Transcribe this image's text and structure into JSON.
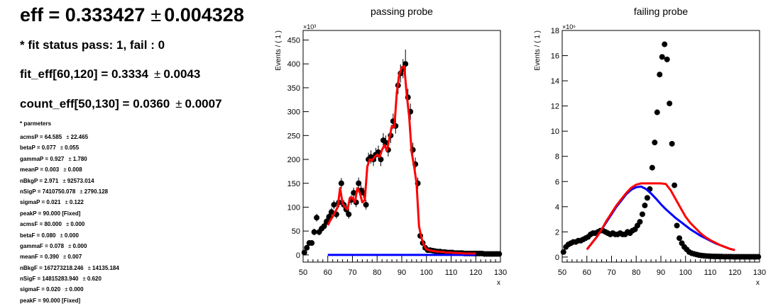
{
  "header": {
    "eff_label": "eff = 0.333427",
    "eff_err": "0.004328",
    "fit_status": "* fit status pass: 1, fail : 0",
    "fit_eff_label": "fit_eff[60,120] = 0.3334",
    "fit_eff_err": "0.0043",
    "count_eff_label": "count_eff[50,130] = 0.0360",
    "count_eff_err": "0.0007",
    "pm_symbol": "±"
  },
  "parameters": {
    "title": "* parmeters",
    "rows": [
      {
        "name": "acmsP = 64.585",
        "err": "22.465"
      },
      {
        "name": "betaP = 0.077",
        "err": "0.055"
      },
      {
        "name": "gammaP = 0.927",
        "err": "1.780"
      },
      {
        "name": "meanP = 0.003",
        "err": "0.008"
      },
      {
        "name": "nBkgP = 2.971",
        "err": "92573.014"
      },
      {
        "name": "nSigP = 7410750.078",
        "err": "2790.128"
      },
      {
        "name": "sigmaP = 0.021",
        "err": "0.122"
      },
      {
        "name": "peakP = 90.000 [Fixed]",
        "err": ""
      },
      {
        "name": "acmsF = 80.000",
        "err": "0.000"
      },
      {
        "name": "betaF = 0.080",
        "err": "0.000"
      },
      {
        "name": "gammaF = 0.078",
        "err": "0.000"
      },
      {
        "name": "meanF = 0.390",
        "err": "0.007"
      },
      {
        "name": "nBkgF = 167273218.246",
        "err": "14135.184"
      },
      {
        "name": "nSigF = 14815283.940",
        "err": "0.620"
      },
      {
        "name": "sigmaF = 0.020",
        "err": "0.000"
      },
      {
        "name": "peakF = 90.000 [Fixed]",
        "err": ""
      }
    ]
  },
  "chart_data": [
    {
      "type": "scatter",
      "title": "passing probe",
      "xlabel": "x",
      "ylabel": "Events / ( 1 )",
      "y_exponent": "×10³",
      "xlim": [
        50,
        130
      ],
      "ylim": [
        -15,
        470
      ],
      "xticks": [
        50,
        60,
        70,
        80,
        90,
        100,
        110,
        120,
        130
      ],
      "yticks": [
        0,
        50,
        100,
        150,
        200,
        250,
        300,
        350,
        400,
        450
      ],
      "colors": {
        "points": "#000000",
        "fit_total": "#ff0000",
        "fit_background": "#0000ff"
      },
      "points": {
        "x": [
          50.5,
          51.5,
          52.5,
          53.5,
          54.5,
          55.5,
          56.5,
          57.5,
          58.5,
          59.5,
          60.5,
          61.5,
          62.5,
          63.5,
          64.5,
          65.5,
          66.5,
          67.5,
          68.5,
          69.5,
          70.5,
          71.5,
          72.5,
          73.5,
          74.5,
          75.5,
          76.5,
          77.5,
          78.5,
          79.5,
          80.5,
          81.5,
          82.5,
          83.5,
          84.5,
          85.5,
          86.5,
          87.5,
          88.5,
          89.5,
          90.5,
          91.5,
          92.5,
          93.5,
          94.5,
          95.5,
          96.5,
          97.5,
          98.5,
          99.5,
          100.5,
          101.5,
          102.5,
          103.5,
          104.5,
          105.5,
          106.5,
          107.5,
          108.5,
          109.5,
          110.5,
          111.5,
          112.5,
          113.5,
          114.5,
          115.5,
          116.5,
          117.5,
          118.5,
          119.5,
          120.5,
          121.5,
          122.5,
          123.5,
          124.5,
          125.5,
          126.5,
          127.5,
          128.5,
          129.5
        ],
        "y": [
          5,
          15,
          25,
          25,
          48,
          78,
          48,
          55,
          60,
          70,
          80,
          90,
          105,
          85,
          110,
          150,
          105,
          95,
          85,
          115,
          130,
          110,
          150,
          135,
          130,
          105,
          200,
          205,
          200,
          210,
          215,
          200,
          240,
          235,
          220,
          250,
          280,
          270,
          355,
          380,
          390,
          400,
          330,
          300,
          220,
          190,
          150,
          40,
          25,
          15,
          10,
          10,
          9,
          8,
          7,
          7,
          6,
          6,
          5,
          5,
          5,
          4,
          4,
          4,
          4,
          3,
          3,
          3,
          3,
          3,
          3,
          3,
          3,
          2,
          2,
          2,
          2,
          2,
          2,
          2
        ],
        "err": [
          5,
          5,
          6,
          6,
          7,
          8,
          7,
          7,
          7,
          8,
          8,
          9,
          9,
          9,
          10,
          11,
          10,
          10,
          9,
          10,
          11,
          10,
          12,
          11,
          11,
          10,
          14,
          14,
          14,
          14,
          14,
          14,
          15,
          15,
          14,
          16,
          16,
          16,
          18,
          19,
          20,
          30,
          18,
          17,
          15,
          14,
          12,
          6,
          5,
          4,
          3,
          3,
          3,
          3,
          3,
          3,
          2,
          2,
          2,
          2,
          2,
          2,
          2,
          2,
          2,
          2,
          2,
          2,
          2,
          2,
          2,
          2,
          2,
          2,
          2,
          2,
          2,
          2,
          2,
          2
        ]
      },
      "fit_total": {
        "x": [
          60,
          61,
          62,
          63,
          64,
          65,
          66,
          67,
          68,
          69,
          70,
          71,
          72,
          73,
          74,
          75,
          76,
          77,
          78,
          79,
          80,
          81,
          82,
          83,
          84,
          85,
          86,
          87,
          88,
          89,
          90,
          91,
          92,
          93,
          94,
          95,
          96,
          97,
          98,
          99,
          100,
          101,
          102,
          103,
          104,
          105,
          106,
          107,
          108,
          109,
          110,
          111,
          112,
          113,
          114,
          115,
          116,
          117,
          118,
          119,
          120
        ],
        "y": [
          62,
          72,
          80,
          90,
          100,
          140,
          108,
          100,
          95,
          120,
          120,
          110,
          140,
          130,
          110,
          115,
          185,
          200,
          198,
          205,
          210,
          205,
          220,
          230,
          218,
          245,
          270,
          268,
          340,
          378,
          392,
          395,
          335,
          290,
          215,
          185,
          150,
          60,
          35,
          20,
          12,
          10,
          9,
          8,
          7,
          7,
          6,
          6,
          5,
          5,
          5,
          4,
          4,
          4,
          4,
          3,
          3,
          3,
          3,
          3,
          3
        ]
      },
      "fit_background": {
        "x": [
          60,
          120
        ],
        "y": [
          0,
          0
        ]
      }
    },
    {
      "type": "scatter",
      "title": "failing probe",
      "xlabel": "x",
      "ylabel": "Events / ( 1 )",
      "y_exponent": "×10⁶",
      "xlim": [
        50,
        130
      ],
      "ylim": [
        -0.4,
        18
      ],
      "xticks": [
        50,
        60,
        70,
        80,
        90,
        100,
        110,
        120,
        130
      ],
      "yticks": [
        0,
        2,
        4,
        6,
        8,
        10,
        12,
        14,
        16,
        18
      ],
      "colors": {
        "points": "#000000",
        "fit_total": "#ff0000",
        "fit_background": "#0000ff"
      },
      "points": {
        "x": [
          50.5,
          51.5,
          52.5,
          53.5,
          54.5,
          55.5,
          56.5,
          57.5,
          58.5,
          59.5,
          60.5,
          61.5,
          62.5,
          63.5,
          64.5,
          65.5,
          66.5,
          67.5,
          68.5,
          69.5,
          70.5,
          71.5,
          72.5,
          73.5,
          74.5,
          75.5,
          76.5,
          77.5,
          78.5,
          79.5,
          80.5,
          81.5,
          82.5,
          83.5,
          84.5,
          85.5,
          86.5,
          87.5,
          88.5,
          89.5,
          90.5,
          91.5,
          92.5,
          93.5,
          94.5,
          95.5,
          96.5,
          97.5,
          98.5,
          99.5,
          100.5,
          101.5,
          102.5,
          103.5,
          104.5,
          105.5,
          106.5,
          107.5,
          108.5,
          109.5,
          110.5,
          111.5,
          112.5,
          113.5,
          114.5,
          115.5,
          116.5,
          117.5,
          118.5,
          119.5,
          120.5,
          121.5,
          122.5,
          123.5,
          124.5,
          125.5,
          126.5,
          127.5,
          128.5,
          129.5
        ],
        "y": [
          0.4,
          0.8,
          1.0,
          1.1,
          1.2,
          1.2,
          1.3,
          1.3,
          1.4,
          1.5,
          1.6,
          1.8,
          1.9,
          1.9,
          2.0,
          2.1,
          2.1,
          2.0,
          1.9,
          1.8,
          1.9,
          1.8,
          1.8,
          1.9,
          1.8,
          1.8,
          2.0,
          1.9,
          2.1,
          2.2,
          2.5,
          2.8,
          3.4,
          4.1,
          4.7,
          5.4,
          7.1,
          9.1,
          11.5,
          14.5,
          15.9,
          16.9,
          15.7,
          12.2,
          9.0,
          5.7,
          2.5,
          1.5,
          1.1,
          0.8,
          0.6,
          0.4,
          0.3,
          0.25,
          0.2,
          0.15,
          0.12,
          0.1,
          0.08,
          0.07,
          0.06,
          0.05,
          0.05,
          0.04,
          0.04,
          0.03,
          0.03,
          0.03,
          0.03,
          0.02,
          0.02,
          0.02,
          0.02,
          0.02,
          0.02,
          0.02,
          0.02,
          0.02,
          0.02,
          0.02
        ]
      },
      "fit_total": {
        "x": [
          60,
          62,
          64,
          66,
          68,
          70,
          72,
          74,
          76,
          78,
          80,
          82,
          84,
          86,
          88,
          90,
          92,
          94,
          96,
          98,
          100,
          102,
          104,
          106,
          108,
          110,
          112,
          114,
          116,
          118,
          120
        ],
        "y": [
          0.6,
          1.1,
          1.6,
          2.2,
          2.9,
          3.5,
          4.1,
          4.6,
          5.1,
          5.5,
          5.75,
          5.85,
          5.85,
          5.85,
          5.85,
          5.85,
          5.8,
          5.3,
          4.6,
          3.9,
          3.2,
          2.7,
          2.3,
          1.9,
          1.6,
          1.35,
          1.15,
          0.95,
          0.8,
          0.65,
          0.55
        ]
      },
      "fit_background": {
        "x": [
          60,
          62,
          64,
          66,
          68,
          70,
          72,
          74,
          76,
          78,
          80,
          82,
          84,
          86,
          88,
          90,
          92,
          94,
          96,
          98,
          100,
          102,
          104,
          106,
          108,
          110,
          112,
          114,
          116,
          118,
          120
        ],
        "y": [
          0.6,
          1.1,
          1.6,
          2.2,
          2.8,
          3.4,
          4.0,
          4.5,
          5.0,
          5.35,
          5.55,
          5.6,
          5.4,
          5.05,
          4.65,
          4.2,
          3.8,
          3.45,
          3.1,
          2.8,
          2.5,
          2.2,
          1.95,
          1.7,
          1.5,
          1.3,
          1.1,
          0.95,
          0.8,
          0.65,
          0.55
        ]
      }
    }
  ]
}
